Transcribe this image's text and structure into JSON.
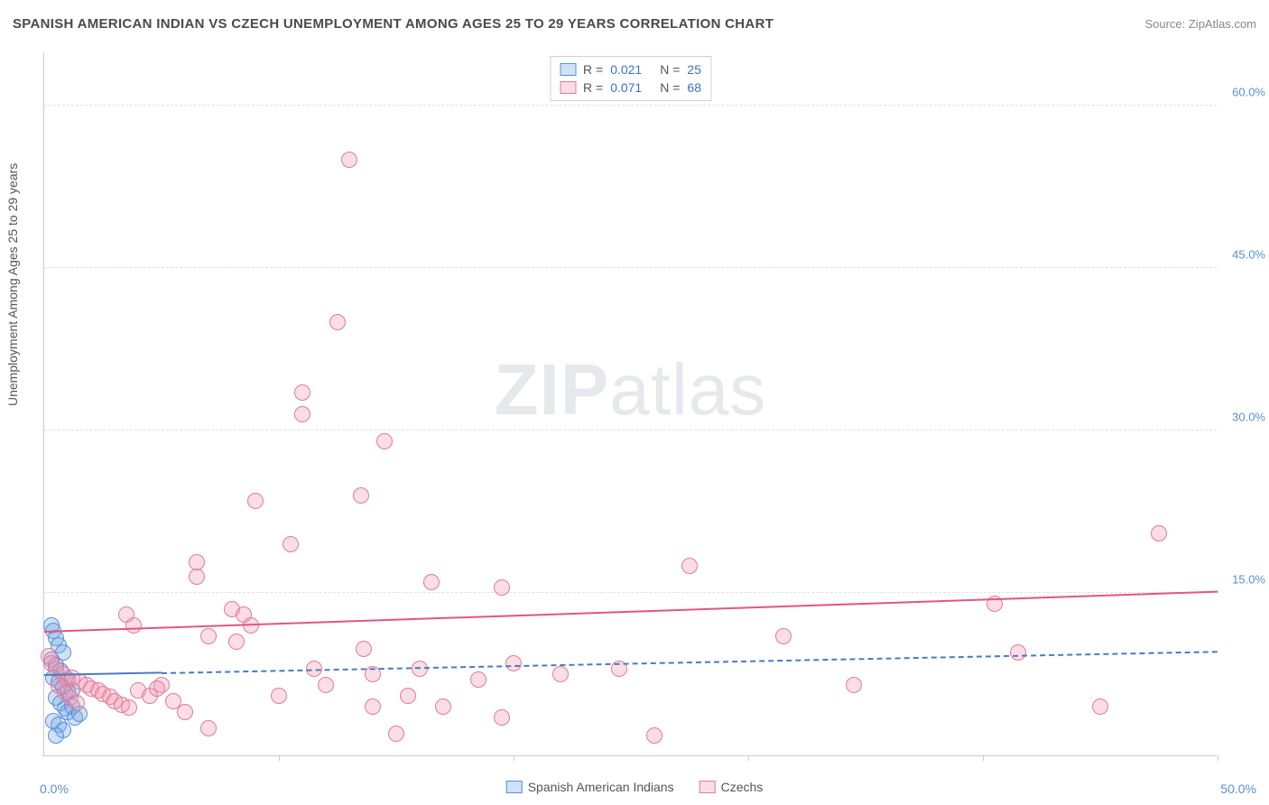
{
  "title": "SPANISH AMERICAN INDIAN VS CZECH UNEMPLOYMENT AMONG AGES 25 TO 29 YEARS CORRELATION CHART",
  "source": "Source: ZipAtlas.com",
  "y_axis_label": "Unemployment Among Ages 25 to 29 years",
  "watermark_bold": "ZIP",
  "watermark_rest": "atlas",
  "chart": {
    "type": "scatter",
    "xlim": [
      0,
      50
    ],
    "ylim": [
      0,
      65
    ],
    "x_start_label": "0.0%",
    "x_end_label": "50.0%",
    "x_tick_positions": [
      0,
      10,
      20,
      30,
      40,
      50
    ],
    "y_ticks": [
      {
        "value": 15,
        "label": "15.0%"
      },
      {
        "value": 30,
        "label": "30.0%"
      },
      {
        "value": 45,
        "label": "45.0%"
      },
      {
        "value": 60,
        "label": "60.0%"
      }
    ],
    "grid_color": "#e0e0e0",
    "axis_color": "#cccccc",
    "background_color": "#ffffff",
    "marker_radius": 9,
    "series": [
      {
        "name": "Spanish American Indians",
        "fill_color": "rgba(120,170,230,0.35)",
        "stroke_color": "#5b8fd6",
        "R": "0.021",
        "N": "25",
        "trend": {
          "y_start": 7.3,
          "y_end": 9.5,
          "x_start": 0,
          "x_end": 50,
          "solid_until_x": 5,
          "color": "#4a7bc0"
        },
        "points": [
          [
            0.3,
            12.0
          ],
          [
            0.4,
            11.5
          ],
          [
            0.5,
            10.8
          ],
          [
            0.6,
            10.2
          ],
          [
            0.8,
            9.5
          ],
          [
            0.3,
            8.8
          ],
          [
            0.5,
            8.3
          ],
          [
            0.7,
            7.8
          ],
          [
            0.4,
            7.2
          ],
          [
            0.6,
            6.8
          ],
          [
            0.8,
            6.3
          ],
          [
            1.0,
            5.8
          ],
          [
            0.5,
            5.3
          ],
          [
            0.7,
            4.8
          ],
          [
            0.9,
            4.3
          ],
          [
            1.2,
            4.5
          ],
          [
            1.0,
            4.0
          ],
          [
            1.3,
            3.5
          ],
          [
            1.5,
            3.8
          ],
          [
            0.4,
            3.2
          ],
          [
            0.6,
            2.8
          ],
          [
            0.8,
            2.3
          ],
          [
            0.5,
            1.8
          ],
          [
            1.0,
            7.0
          ],
          [
            1.2,
            6.0
          ]
        ]
      },
      {
        "name": "Czechs",
        "fill_color": "rgba(240,150,175,0.32)",
        "stroke_color": "#e37a9b",
        "R": "0.071",
        "N": "68",
        "trend": {
          "y_start": 11.3,
          "y_end": 15.0,
          "x_start": 0,
          "x_end": 50,
          "solid_until_x": 50,
          "color": "#e25584"
        },
        "points": [
          [
            0.2,
            9.2
          ],
          [
            0.3,
            8.5
          ],
          [
            0.5,
            8.0
          ],
          [
            0.8,
            7.5
          ],
          [
            1.0,
            7.0
          ],
          [
            1.2,
            7.2
          ],
          [
            1.5,
            6.8
          ],
          [
            1.8,
            6.5
          ],
          [
            2.0,
            6.2
          ],
          [
            2.3,
            6.0
          ],
          [
            2.5,
            5.7
          ],
          [
            2.8,
            5.4
          ],
          [
            3.0,
            5.0
          ],
          [
            3.3,
            4.7
          ],
          [
            3.6,
            4.4
          ],
          [
            0.6,
            6.4
          ],
          [
            0.9,
            5.8
          ],
          [
            1.1,
            5.3
          ],
          [
            1.4,
            4.8
          ],
          [
            4.0,
            6.0
          ],
          [
            4.5,
            5.5
          ],
          [
            5.0,
            6.5
          ],
          [
            5.5,
            5.0
          ],
          [
            3.8,
            12.0
          ],
          [
            3.5,
            13.0
          ],
          [
            4.8,
            6.2
          ],
          [
            6.0,
            4.0
          ],
          [
            6.5,
            16.5
          ],
          [
            6.5,
            17.8
          ],
          [
            7.0,
            11.0
          ],
          [
            7.0,
            2.5
          ],
          [
            8.0,
            13.5
          ],
          [
            8.2,
            10.5
          ],
          [
            8.5,
            13.0
          ],
          [
            8.8,
            12.0
          ],
          [
            9.0,
            23.5
          ],
          [
            10.0,
            5.5
          ],
          [
            10.5,
            19.5
          ],
          [
            11.0,
            31.5
          ],
          [
            11.0,
            33.5
          ],
          [
            11.5,
            8.0
          ],
          [
            12.0,
            6.5
          ],
          [
            12.5,
            40.0
          ],
          [
            13.0,
            55.0
          ],
          [
            13.5,
            24.0
          ],
          [
            13.6,
            9.8
          ],
          [
            14.0,
            4.5
          ],
          [
            14.0,
            7.5
          ],
          [
            14.5,
            29.0
          ],
          [
            15.0,
            2.0
          ],
          [
            15.5,
            5.5
          ],
          [
            16.0,
            8.0
          ],
          [
            16.5,
            16.0
          ],
          [
            17.0,
            4.5
          ],
          [
            18.5,
            7.0
          ],
          [
            19.5,
            3.5
          ],
          [
            19.5,
            15.5
          ],
          [
            20.0,
            8.5
          ],
          [
            22.0,
            7.5
          ],
          [
            24.5,
            8.0
          ],
          [
            26.0,
            1.8
          ],
          [
            27.5,
            17.5
          ],
          [
            31.5,
            11.0
          ],
          [
            34.5,
            6.5
          ],
          [
            40.5,
            14.0
          ],
          [
            41.5,
            9.5
          ],
          [
            45.0,
            4.5
          ],
          [
            47.5,
            20.5
          ]
        ]
      }
    ],
    "legend_top": {
      "R_label": "R =",
      "N_label": "N ="
    }
  }
}
